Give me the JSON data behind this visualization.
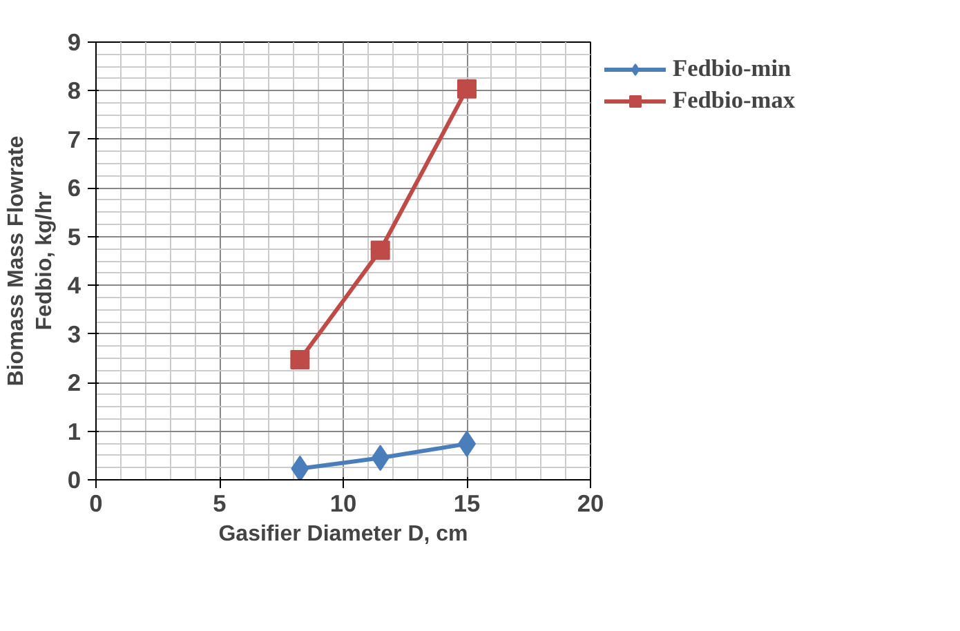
{
  "chart_data": {
    "type": "line",
    "xlabel": "Gasifier Diameter D, cm",
    "ylabel": "Biomass Mass Flowrate\nFedbio, kg/hr",
    "x": [
      8.25,
      11.5,
      15
    ],
    "series": [
      {
        "name": "Fedbio-min",
        "color": "#4a7ebb",
        "values": [
          0.23,
          0.45,
          0.74
        ],
        "marker": "diamond"
      },
      {
        "name": "Fedbio-max",
        "color": "#be4b48",
        "values": [
          2.47,
          4.72,
          8.04
        ],
        "marker": "square"
      }
    ],
    "xlim": [
      0,
      20
    ],
    "xticks": [
      0,
      5,
      10,
      15,
      20
    ],
    "ylim": [
      0,
      9
    ],
    "yticks": [
      0,
      1,
      2,
      3,
      4,
      5,
      6,
      7,
      8,
      9
    ],
    "grid": true,
    "legend": "top right",
    "line_style": "solid"
  }
}
